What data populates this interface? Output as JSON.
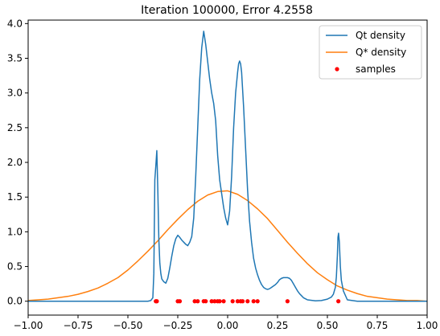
{
  "chart_data": {
    "type": "line",
    "title": "Iteration 100000, Error 4.2558",
    "xlabel": "",
    "ylabel": "",
    "xlim": [
      -1.0,
      1.0
    ],
    "ylim": [
      -0.2,
      4.05
    ],
    "xticks": [
      -1.0,
      -0.75,
      -0.5,
      -0.25,
      0.0,
      0.25,
      0.5,
      0.75,
      1.0
    ],
    "xtick_labels": [
      "−1.00",
      "−0.75",
      "−0.50",
      "−0.25",
      "0.00",
      "0.25",
      "0.50",
      "0.75",
      "1.00"
    ],
    "yticks": [
      0.0,
      0.5,
      1.0,
      1.5,
      2.0,
      2.5,
      3.0,
      3.5,
      4.0
    ],
    "ytick_labels": [
      "0.0",
      "0.5",
      "1.0",
      "1.5",
      "2.0",
      "2.5",
      "3.0",
      "3.5",
      "4.0"
    ],
    "grid": false,
    "legend_position": "top-right",
    "colors": {
      "qt": "#1f77b4",
      "qstar": "#ff7f0e",
      "samples": "#ff0000"
    },
    "series": [
      {
        "name": "Qt density",
        "kind": "line",
        "x": [
          -1.0,
          -0.5,
          -0.4,
          -0.385,
          -0.375,
          -0.37,
          -0.365,
          -0.36,
          -0.355,
          -0.35,
          -0.345,
          -0.34,
          -0.335,
          -0.33,
          -0.32,
          -0.31,
          -0.3,
          -0.29,
          -0.28,
          -0.27,
          -0.26,
          -0.25,
          -0.24,
          -0.23,
          -0.22,
          -0.21,
          -0.2,
          -0.19,
          -0.18,
          -0.17,
          -0.16,
          -0.15,
          -0.14,
          -0.13,
          -0.12,
          -0.11,
          -0.1,
          -0.09,
          -0.08,
          -0.07,
          -0.06,
          -0.05,
          -0.04,
          -0.03,
          -0.02,
          -0.01,
          0.0,
          0.01,
          0.02,
          0.03,
          0.04,
          0.05,
          0.055,
          0.06,
          0.065,
          0.07,
          0.08,
          0.09,
          0.1,
          0.11,
          0.12,
          0.13,
          0.14,
          0.15,
          0.16,
          0.17,
          0.18,
          0.19,
          0.2,
          0.21,
          0.22,
          0.23,
          0.24,
          0.25,
          0.26,
          0.27,
          0.28,
          0.29,
          0.3,
          0.31,
          0.32,
          0.33,
          0.34,
          0.35,
          0.36,
          0.37,
          0.38,
          0.4,
          0.44,
          0.47,
          0.5,
          0.52,
          0.53,
          0.54,
          0.545,
          0.55,
          0.553,
          0.556,
          0.56,
          0.565,
          0.57,
          0.58,
          0.6,
          0.65,
          1.0
        ],
        "y": [
          0.0,
          0.0,
          0.0,
          0.01,
          0.05,
          0.4,
          1.75,
          1.95,
          2.17,
          1.6,
          0.9,
          0.55,
          0.4,
          0.32,
          0.28,
          0.26,
          0.33,
          0.48,
          0.65,
          0.8,
          0.9,
          0.95,
          0.92,
          0.88,
          0.85,
          0.82,
          0.8,
          0.85,
          0.93,
          1.2,
          1.8,
          2.5,
          3.2,
          3.65,
          3.89,
          3.7,
          3.45,
          3.2,
          3.0,
          2.85,
          2.6,
          2.1,
          1.75,
          1.55,
          1.35,
          1.2,
          1.1,
          1.3,
          1.8,
          2.5,
          3.0,
          3.3,
          3.42,
          3.46,
          3.42,
          3.3,
          2.8,
          2.2,
          1.6,
          1.15,
          0.85,
          0.62,
          0.48,
          0.38,
          0.3,
          0.24,
          0.2,
          0.18,
          0.17,
          0.18,
          0.2,
          0.22,
          0.24,
          0.27,
          0.31,
          0.33,
          0.34,
          0.34,
          0.34,
          0.33,
          0.3,
          0.25,
          0.2,
          0.15,
          0.11,
          0.08,
          0.05,
          0.02,
          0.005,
          0.01,
          0.03,
          0.06,
          0.1,
          0.2,
          0.35,
          0.65,
          0.92,
          0.98,
          0.85,
          0.5,
          0.3,
          0.15,
          0.02,
          0.0,
          0.0
        ]
      },
      {
        "name": "Q* density",
        "kind": "line",
        "x": [
          -1.0,
          -0.95,
          -0.9,
          -0.85,
          -0.8,
          -0.75,
          -0.7,
          -0.65,
          -0.6,
          -0.55,
          -0.5,
          -0.45,
          -0.4,
          -0.35,
          -0.3,
          -0.25,
          -0.2,
          -0.15,
          -0.1,
          -0.05,
          0.0,
          0.05,
          0.1,
          0.15,
          0.2,
          0.25,
          0.3,
          0.35,
          0.4,
          0.45,
          0.5,
          0.55,
          0.6,
          0.65,
          0.7,
          0.75,
          0.8,
          0.85,
          0.9,
          0.95,
          1.0
        ],
        "y": [
          0.01,
          0.02,
          0.03,
          0.05,
          0.07,
          0.1,
          0.14,
          0.19,
          0.26,
          0.34,
          0.45,
          0.58,
          0.72,
          0.87,
          1.03,
          1.18,
          1.32,
          1.44,
          1.53,
          1.58,
          1.59,
          1.54,
          1.45,
          1.33,
          1.19,
          1.02,
          0.85,
          0.69,
          0.54,
          0.41,
          0.31,
          0.22,
          0.16,
          0.11,
          0.07,
          0.05,
          0.03,
          0.02,
          0.01,
          0.01,
          0.0
        ]
      },
      {
        "name": "samples",
        "kind": "scatter",
        "x": [
          -0.36,
          -0.355,
          -0.25,
          -0.24,
          -0.165,
          -0.15,
          -0.12,
          -0.11,
          -0.08,
          -0.065,
          -0.05,
          -0.04,
          -0.02,
          0.025,
          0.05,
          0.065,
          0.075,
          0.1,
          0.13,
          0.15,
          0.3,
          0.555
        ],
        "y": [
          0.0,
          0.0,
          0.0,
          0.0,
          0.0,
          0.0,
          0.0,
          0.0,
          0.0,
          0.0,
          0.0,
          0.0,
          0.0,
          0.0,
          0.0,
          0.0,
          0.0,
          0.0,
          0.0,
          0.0,
          0.0,
          0.0
        ]
      }
    ]
  }
}
